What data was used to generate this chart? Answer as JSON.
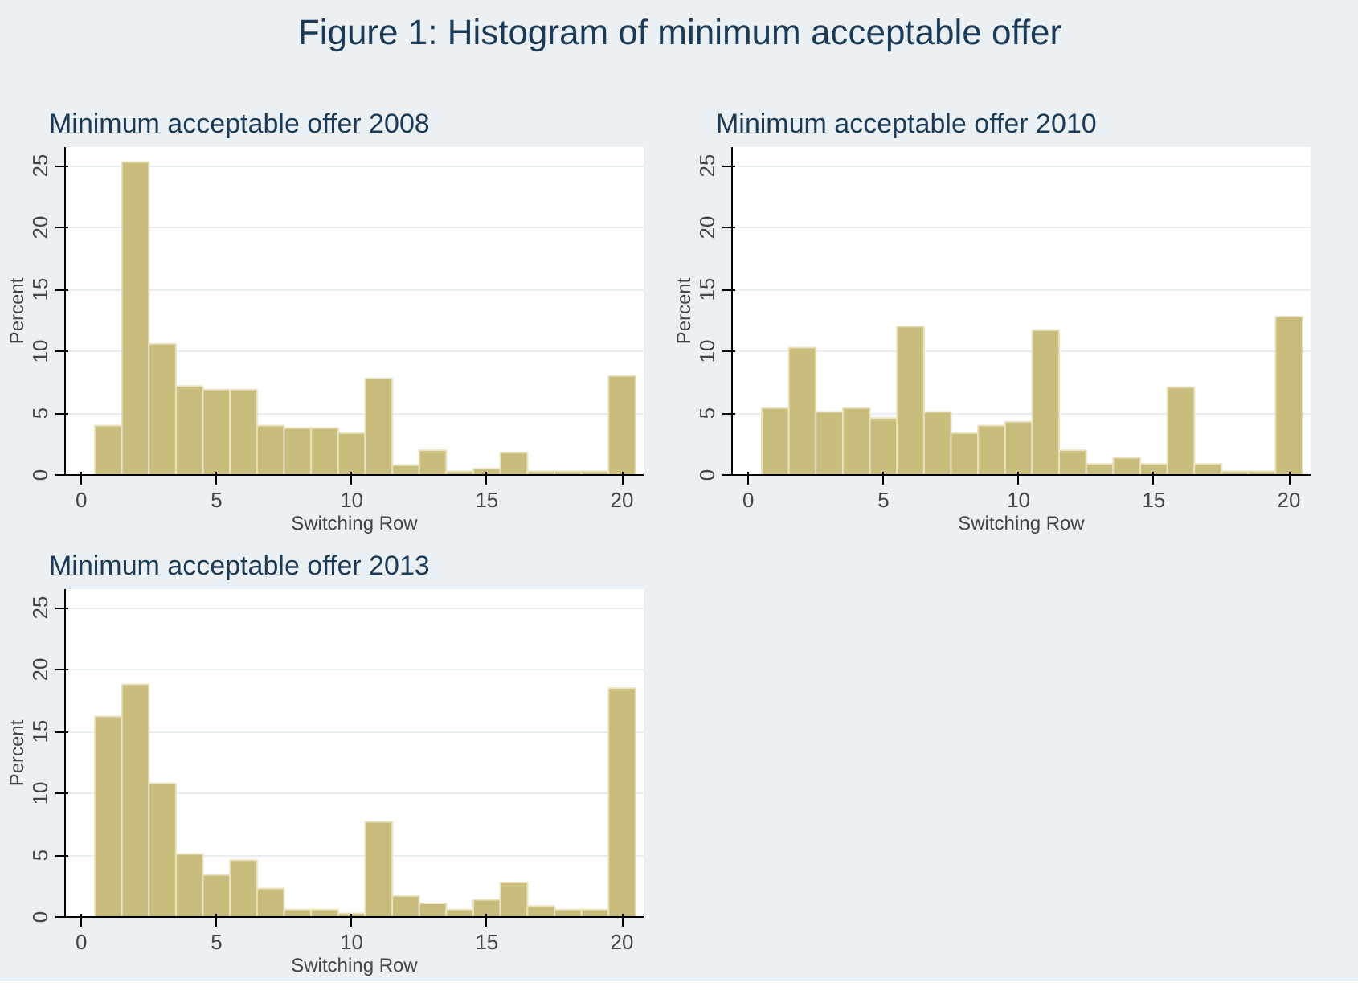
{
  "chart_data": [
    {
      "type": "other",
      "title": "Figure 1: Histogram of minimum acceptable offer"
    },
    {
      "type": "histogram",
      "title": "Minimum acceptable offer 2008",
      "xlabel": "Switching Row",
      "ylabel": "Percent",
      "color": "#c8bd7c",
      "bins": [
        0.5,
        1.5,
        2.5,
        3.5,
        4.5,
        5.5,
        6.5,
        7.5,
        8.5,
        9.5,
        10.5,
        11.5,
        12.5,
        13.5,
        14.5,
        15.5,
        16.5,
        17.5,
        18.5,
        19.5,
        20.5
      ],
      "values": [
        4.0,
        25.3,
        10.6,
        7.2,
        6.9,
        6.9,
        4.0,
        3.8,
        3.8,
        3.4,
        7.8,
        0.8,
        2.0,
        0.3,
        0.5,
        1.8,
        0.3,
        0.3,
        0.3,
        8.0
      ],
      "xlim": [
        -0.6,
        20.8
      ],
      "ylim": [
        0,
        26.5
      ],
      "xticks": [
        0,
        5,
        10,
        15,
        20
      ],
      "yticks": [
        0,
        5,
        10,
        15,
        20,
        25
      ],
      "grid": "y"
    },
    {
      "type": "histogram",
      "title": "Minimum acceptable offer 2010",
      "xlabel": "Switching Row",
      "ylabel": "Percent",
      "color": "#c8bd7c",
      "bins": [
        0.5,
        1.5,
        2.5,
        3.5,
        4.5,
        5.5,
        6.5,
        7.5,
        8.5,
        9.5,
        10.5,
        11.5,
        12.5,
        13.5,
        14.5,
        15.5,
        16.5,
        17.5,
        18.5,
        19.5,
        20.5
      ],
      "values": [
        5.4,
        10.3,
        5.1,
        5.4,
        4.6,
        12.0,
        5.1,
        3.4,
        4.0,
        4.3,
        11.7,
        2.0,
        0.9,
        1.4,
        0.9,
        7.1,
        0.9,
        0.3,
        0.3,
        12.8
      ],
      "xlim": [
        -0.6,
        20.8
      ],
      "ylim": [
        0,
        26.5
      ],
      "xticks": [
        0,
        5,
        10,
        15,
        20
      ],
      "yticks": [
        0,
        5,
        10,
        15,
        20,
        25
      ],
      "grid": "y"
    },
    {
      "type": "histogram",
      "title": "Minimum acceptable offer 2013",
      "xlabel": "Switching Row",
      "ylabel": "Percent",
      "color": "#c8bd7c",
      "bins": [
        0.5,
        1.5,
        2.5,
        3.5,
        4.5,
        5.5,
        6.5,
        7.5,
        8.5,
        9.5,
        10.5,
        11.5,
        12.5,
        13.5,
        14.5,
        15.5,
        16.5,
        17.5,
        18.5,
        19.5,
        20.5
      ],
      "values": [
        16.2,
        18.8,
        10.8,
        5.1,
        3.4,
        4.6,
        2.3,
        0.6,
        0.6,
        0.3,
        7.7,
        1.7,
        1.1,
        0.6,
        1.4,
        2.8,
        0.9,
        0.6,
        0.6,
        18.5
      ],
      "xlim": [
        -0.6,
        20.8
      ],
      "ylim": [
        0,
        26.5
      ],
      "xticks": [
        0,
        5,
        10,
        15,
        20
      ],
      "yticks": [
        0,
        5,
        10,
        15,
        20,
        25
      ],
      "grid": "y"
    }
  ]
}
